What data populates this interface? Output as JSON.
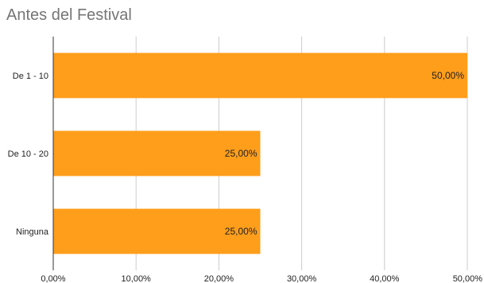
{
  "chart_data": {
    "type": "bar",
    "orientation": "horizontal",
    "title": "Antes del Festival",
    "categories": [
      "De 1 - 10",
      "De 10 - 20",
      "Ninguna"
    ],
    "values": [
      50,
      25,
      25
    ],
    "value_labels": [
      "50,00%",
      "25,00%",
      "25,00%"
    ],
    "xlim": [
      0,
      50
    ],
    "xticks": [
      0,
      10,
      20,
      30,
      40,
      50
    ],
    "xtick_labels": [
      "0,00%",
      "10,00%",
      "20,00%",
      "30,00%",
      "40,00%",
      "50,00%"
    ],
    "grid": true,
    "bar_color": "#ff9e1b",
    "grid_color": "#cccccc",
    "xlabel": "",
    "ylabel": ""
  }
}
